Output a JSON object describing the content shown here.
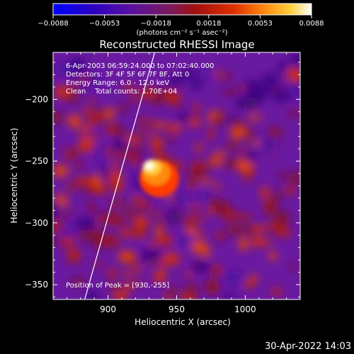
{
  "chart_data": {
    "type": "heatmap",
    "title": "Reconstructed RHESSI Image",
    "xlabel": "Heliocentric X (arcsec)",
    "ylabel": "Heliocentric Y (arcsec)",
    "xlim": [
      860,
      1040
    ],
    "ylim": [
      -362,
      -162
    ],
    "x_ticks": [
      900,
      950,
      1000
    ],
    "x_tick_labels": [
      "900",
      "950",
      "1000"
    ],
    "y_ticks": [
      -200,
      -250,
      -300,
      -350
    ],
    "y_tick_labels": [
      "-200",
      "-250",
      "-300",
      "-350"
    ],
    "colorbar": {
      "ticks": [
        -0.0088,
        -0.0053,
        -0.0018,
        0.0018,
        0.0053,
        0.0088
      ],
      "tick_labels": [
        "-0.0088",
        "-0.0053",
        "-0.0018",
        "0.0018",
        "0.0053",
        "0.0088"
      ],
      "label": "(photons cm⁻² s⁻¹ asec⁻²)",
      "range": [
        -0.0088,
        0.0088
      ],
      "colors": [
        "#0000ff",
        "#3a0080",
        "#6a1aa0",
        "#8a1e1e",
        "#c01800",
        "#e84a00",
        "#ff9a20",
        "#ffe060",
        "#ffffff"
      ]
    },
    "peak": {
      "x": 930,
      "y": -255,
      "value": 0.0088
    },
    "limb_line": [
      [
        883,
        -362
      ],
      [
        934,
        -162
      ]
    ],
    "annotations": [
      "6-Apr-2003 06:59:24.000 to 07:02:40.000",
      "Detectors: 3F 4F 5F 6F 7F 8F, Att 0",
      "Energy Range: 6.0 - 12.0 keV",
      "Clean    Total counts: 1.70E+04"
    ],
    "peak_label": "Position of Peak = [930,-255]"
  },
  "footer": {
    "timestamp": "30-Apr-2022 14:03"
  }
}
